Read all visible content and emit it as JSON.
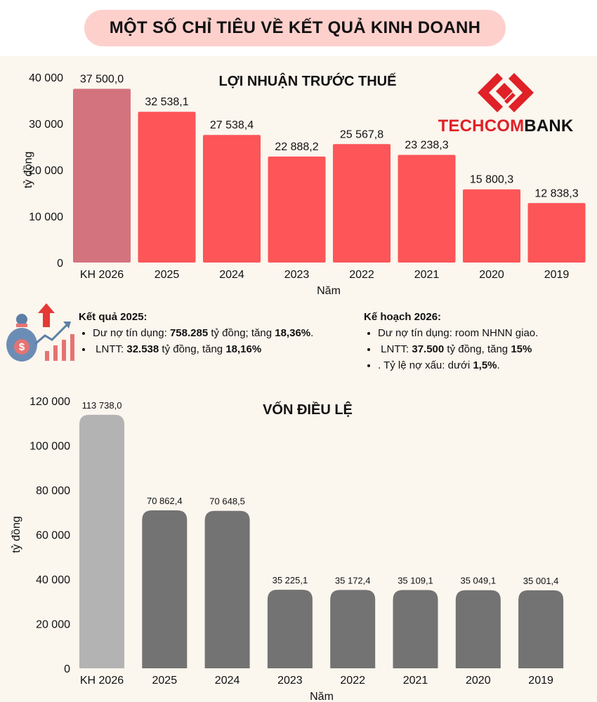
{
  "header": {
    "title": "MỘT SỐ CHỈ TIÊU VỀ KẾT QUẢ KINH DOANH"
  },
  "logo": {
    "part1": "TECHCOM",
    "part2": "BANK",
    "colors": {
      "red": "#e02127",
      "dark": "#111111"
    }
  },
  "colors": {
    "background": "#fbf6ee",
    "pill": "#fdd0cc",
    "bar_red": "#fd5558",
    "bar_red_plan": "#d3737e",
    "bar_gray": "#737373",
    "bar_gray_plan": "#b3b3b3"
  },
  "result_2025": {
    "heading": "Kết quả 2025:",
    "item1_prefix": "Dư nợ tín dụng: ",
    "item1_value": "758.285",
    "item1_mid": " tỷ đồng; tăng ",
    "item1_pct": "18,36%",
    "item1_end": ".",
    "item2_prefix": "LNTT: ",
    "item2_value": "32.538",
    "item2_mid": " tỷ đồng, tăng ",
    "item2_pct": "18,16%"
  },
  "plan_2026": {
    "heading": "Kế hoạch 2026:",
    "item1": "Dư nợ tín dụng: room NHNN giao.",
    "item2_prefix": "LNTT: ",
    "item2_value": "37.500",
    "item2_mid": " tỷ đồng, tăng ",
    "item2_pct": "15%",
    "item3_prefix": ". Tỷ lệ nợ xấu: dưới ",
    "item3_value": "1,5%",
    "item3_end": "."
  },
  "chart_data": [
    {
      "type": "bar",
      "title": "LỢI NHUẬN TRƯỚC THUẾ",
      "xlabel": "Năm",
      "ylabel": "tỷ đồng",
      "categories": [
        "KH 2026",
        "2025",
        "2024",
        "2023",
        "2022",
        "2021",
        "2020",
        "2019"
      ],
      "values": [
        37500.0,
        32538.1,
        27538.4,
        22888.2,
        25567.8,
        23238.3,
        15800.3,
        12838.3
      ],
      "value_labels": [
        "37 500,0",
        "32 538,1",
        "27 538,4",
        "22 888,2",
        "25 567,8",
        "23 238,3",
        "15 800,3",
        "12 838,3"
      ],
      "ylim": [
        0,
        40000
      ],
      "yticks": [
        0,
        10000,
        20000,
        30000,
        40000
      ],
      "ytick_labels": [
        "0",
        "10 000",
        "20 000",
        "30 000",
        "40 000"
      ],
      "grid": false,
      "legend": "none"
    },
    {
      "type": "bar",
      "title": "VỐN ĐIỀU LỆ",
      "xlabel": "Năm",
      "ylabel": "tỷ đồng",
      "categories": [
        "KH 2026",
        "2025",
        "2024",
        "2023",
        "2022",
        "2021",
        "2020",
        "2019"
      ],
      "values": [
        113738.0,
        70862.4,
        70648.5,
        35225.1,
        35172.4,
        35109.1,
        35049.1,
        35001.4
      ],
      "value_labels": [
        "113 738,0",
        "70 862,4",
        "70 648,5",
        "35 225,1",
        "35 172,4",
        "35 109,1",
        "35 049,1",
        "35 001,4"
      ],
      "ylim": [
        0,
        120000
      ],
      "yticks": [
        0,
        20000,
        40000,
        60000,
        80000,
        100000,
        120000
      ],
      "ytick_labels": [
        "0",
        "20 000",
        "40 000",
        "60 000",
        "80 000",
        "100 000",
        "120 000"
      ],
      "grid": false,
      "legend": "none"
    }
  ]
}
